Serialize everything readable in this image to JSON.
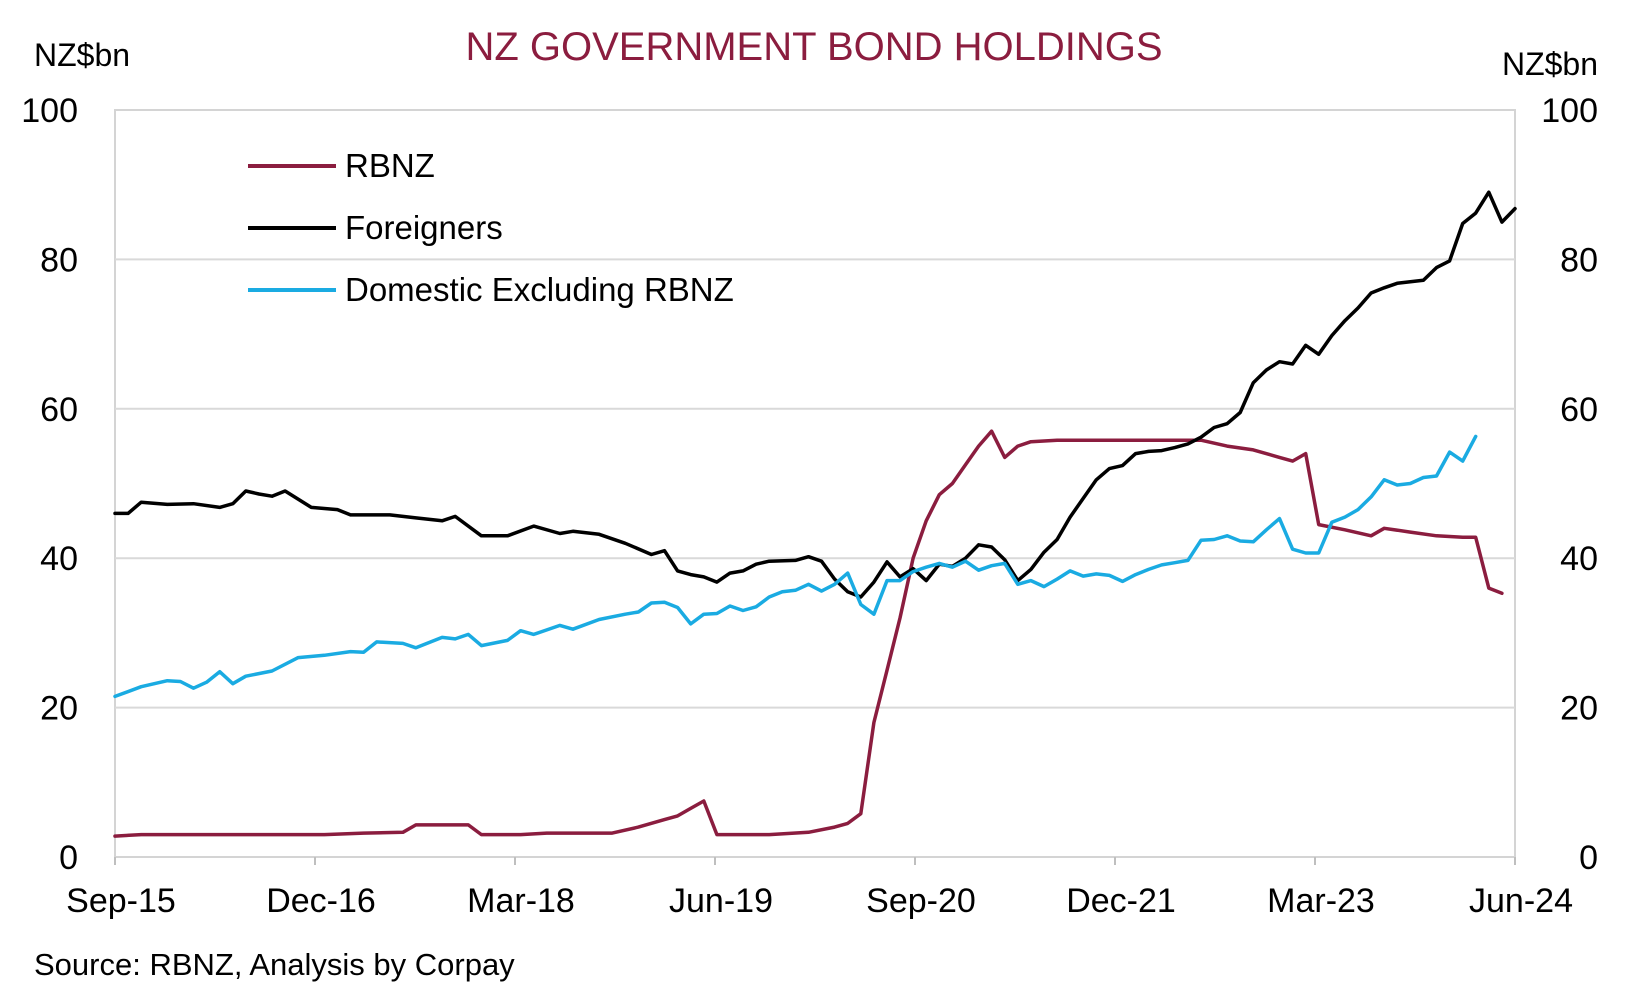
{
  "chart_data": {
    "type": "line",
    "title": "NZ GOVERNMENT BOND HOLDINGS",
    "title_color": "#8b1d3f",
    "ylabel_left": "NZ$bn",
    "ylabel_right": "NZ$bn",
    "ylim": [
      0,
      100
    ],
    "yticks": [
      0,
      20,
      40,
      60,
      80,
      100
    ],
    "x_tick_labels": [
      "Sep-15",
      "Dec-16",
      "Mar-18",
      "Jun-19",
      "Sep-20",
      "Dec-21",
      "Mar-23",
      "Jun-24"
    ],
    "x_start": "2015-09",
    "x_end": "2024-08",
    "grid": true,
    "legend_position": "top-left",
    "source": "Source: RBNZ, Analysis by Corpay",
    "series": [
      {
        "name": "RBNZ",
        "color": "#8b1d3f",
        "points": [
          [
            "2015-09",
            2.8
          ],
          [
            "2015-11",
            3.0
          ],
          [
            "2016-06",
            3.0
          ],
          [
            "2017-01",
            3.0
          ],
          [
            "2017-04",
            3.2
          ],
          [
            "2017-07",
            3.3
          ],
          [
            "2017-08",
            4.3
          ],
          [
            "2017-12",
            4.3
          ],
          [
            "2018-01",
            3.0
          ],
          [
            "2018-04",
            3.0
          ],
          [
            "2018-06",
            3.2
          ],
          [
            "2018-11",
            3.2
          ],
          [
            "2019-01",
            4.0
          ],
          [
            "2019-03",
            5.0
          ],
          [
            "2019-04",
            5.5
          ],
          [
            "2019-05",
            6.5
          ],
          [
            "2019-06",
            7.5
          ],
          [
            "2019-07",
            3.0
          ],
          [
            "2019-11",
            3.0
          ],
          [
            "2020-02",
            3.3
          ],
          [
            "2020-04",
            4.0
          ],
          [
            "2020-05",
            4.5
          ],
          [
            "2020-06",
            5.8
          ],
          [
            "2020-07",
            18.0
          ],
          [
            "2020-08",
            25.0
          ],
          [
            "2020-09",
            32.0
          ],
          [
            "2020-10",
            40.0
          ],
          [
            "2020-11",
            45.0
          ],
          [
            "2020-12",
            48.5
          ],
          [
            "2021-01",
            50.0
          ],
          [
            "2021-02",
            52.5
          ],
          [
            "2021-03",
            55.0
          ],
          [
            "2021-04",
            57.0
          ],
          [
            "2021-05",
            53.5
          ],
          [
            "2021-06",
            55.0
          ],
          [
            "2021-07",
            55.6
          ],
          [
            "2021-09",
            55.8
          ],
          [
            "2022-08",
            55.8
          ],
          [
            "2022-10",
            55.0
          ],
          [
            "2022-12",
            54.5
          ],
          [
            "2023-02",
            53.5
          ],
          [
            "2023-03",
            53.0
          ],
          [
            "2023-04",
            54.0
          ],
          [
            "2023-05",
            44.5
          ],
          [
            "2023-07",
            43.8
          ],
          [
            "2023-09",
            43.0
          ],
          [
            "2023-10",
            44.0
          ],
          [
            "2023-12",
            43.5
          ],
          [
            "2024-02",
            43.0
          ],
          [
            "2024-04",
            42.8
          ],
          [
            "2024-05",
            42.8
          ],
          [
            "2024-06",
            36.0
          ],
          [
            "2024-07",
            35.3
          ]
        ]
      },
      {
        "name": "Foreigners",
        "color": "#000000",
        "points": [
          [
            "2015-09",
            46.0
          ],
          [
            "2015-10",
            46.0
          ],
          [
            "2015-11",
            47.5
          ],
          [
            "2016-01",
            47.2
          ],
          [
            "2016-03",
            47.3
          ],
          [
            "2016-05",
            46.8
          ],
          [
            "2016-06",
            47.3
          ],
          [
            "2016-07",
            49.0
          ],
          [
            "2016-08",
            48.6
          ],
          [
            "2016-09",
            48.3
          ],
          [
            "2016-10",
            49.0
          ],
          [
            "2016-12",
            46.8
          ],
          [
            "2017-02",
            46.5
          ],
          [
            "2017-03",
            45.8
          ],
          [
            "2017-06",
            45.8
          ],
          [
            "2017-08",
            45.4
          ],
          [
            "2017-10",
            45.0
          ],
          [
            "2017-11",
            45.6
          ],
          [
            "2018-01",
            43.0
          ],
          [
            "2018-03",
            43.0
          ],
          [
            "2018-05",
            44.3
          ],
          [
            "2018-07",
            43.3
          ],
          [
            "2018-08",
            43.6
          ],
          [
            "2018-10",
            43.2
          ],
          [
            "2018-12",
            42.0
          ],
          [
            "2019-02",
            40.5
          ],
          [
            "2019-03",
            41.0
          ],
          [
            "2019-04",
            38.3
          ],
          [
            "2019-05",
            37.8
          ],
          [
            "2019-06",
            37.5
          ],
          [
            "2019-07",
            36.8
          ],
          [
            "2019-08",
            38.0
          ],
          [
            "2019-09",
            38.3
          ],
          [
            "2019-10",
            39.2
          ],
          [
            "2019-11",
            39.6
          ],
          [
            "2020-01",
            39.7
          ],
          [
            "2020-02",
            40.2
          ],
          [
            "2020-03",
            39.6
          ],
          [
            "2020-04",
            37.2
          ],
          [
            "2020-05",
            35.5
          ],
          [
            "2020-06",
            34.8
          ],
          [
            "2020-07",
            36.8
          ],
          [
            "2020-08",
            39.5
          ],
          [
            "2020-09",
            37.5
          ],
          [
            "2020-10",
            38.6
          ],
          [
            "2020-11",
            37.0
          ],
          [
            "2020-12",
            39.2
          ],
          [
            "2021-01",
            38.9
          ],
          [
            "2021-02",
            40.0
          ],
          [
            "2021-03",
            41.8
          ],
          [
            "2021-04",
            41.5
          ],
          [
            "2021-05",
            39.8
          ],
          [
            "2021-06",
            37.0
          ],
          [
            "2021-07",
            38.5
          ],
          [
            "2021-08",
            40.8
          ],
          [
            "2021-09",
            42.5
          ],
          [
            "2021-10",
            45.5
          ],
          [
            "2021-11",
            48.0
          ],
          [
            "2021-12",
            50.5
          ],
          [
            "2022-01",
            52.0
          ],
          [
            "2022-02",
            52.4
          ],
          [
            "2022-03",
            54.0
          ],
          [
            "2022-04",
            54.3
          ],
          [
            "2022-05",
            54.4
          ],
          [
            "2022-06",
            54.8
          ],
          [
            "2022-07",
            55.3
          ],
          [
            "2022-08",
            56.2
          ],
          [
            "2022-09",
            57.5
          ],
          [
            "2022-10",
            58.0
          ],
          [
            "2022-11",
            59.5
          ],
          [
            "2022-12",
            63.5
          ],
          [
            "2023-01",
            65.2
          ],
          [
            "2023-02",
            66.3
          ],
          [
            "2023-03",
            66.0
          ],
          [
            "2023-04",
            68.5
          ],
          [
            "2023-05",
            67.3
          ],
          [
            "2023-06",
            69.8
          ],
          [
            "2023-07",
            71.8
          ],
          [
            "2023-08",
            73.5
          ],
          [
            "2023-09",
            75.5
          ],
          [
            "2023-10",
            76.2
          ],
          [
            "2023-11",
            76.8
          ],
          [
            "2023-12",
            77.0
          ],
          [
            "2024-01",
            77.2
          ],
          [
            "2024-02",
            78.9
          ],
          [
            "2024-03",
            79.8
          ],
          [
            "2024-04",
            84.8
          ],
          [
            "2024-05",
            86.2
          ],
          [
            "2024-06",
            89.0
          ],
          [
            "2024-07",
            85.0
          ],
          [
            "2024-08",
            86.8
          ]
        ]
      },
      {
        "name": "Domestic Excluding RBNZ",
        "color": "#1aabe2",
        "points": [
          [
            "2015-09",
            21.5
          ],
          [
            "2015-11",
            22.8
          ],
          [
            "2016-01",
            23.6
          ],
          [
            "2016-02",
            23.5
          ],
          [
            "2016-03",
            22.6
          ],
          [
            "2016-04",
            23.4
          ],
          [
            "2016-05",
            24.8
          ],
          [
            "2016-06",
            23.2
          ],
          [
            "2016-07",
            24.2
          ],
          [
            "2016-09",
            24.9
          ],
          [
            "2016-11",
            26.7
          ],
          [
            "2017-01",
            27.0
          ],
          [
            "2017-03",
            27.5
          ],
          [
            "2017-04",
            27.4
          ],
          [
            "2017-05",
            28.8
          ],
          [
            "2017-07",
            28.6
          ],
          [
            "2017-08",
            28.0
          ],
          [
            "2017-10",
            29.4
          ],
          [
            "2017-11",
            29.2
          ],
          [
            "2017-12",
            29.8
          ],
          [
            "2018-01",
            28.3
          ],
          [
            "2018-03",
            29.0
          ],
          [
            "2018-04",
            30.3
          ],
          [
            "2018-05",
            29.8
          ],
          [
            "2018-07",
            31.0
          ],
          [
            "2018-08",
            30.5
          ],
          [
            "2018-10",
            31.8
          ],
          [
            "2018-12",
            32.5
          ],
          [
            "2019-01",
            32.8
          ],
          [
            "2019-02",
            34.0
          ],
          [
            "2019-03",
            34.1
          ],
          [
            "2019-04",
            33.4
          ],
          [
            "2019-05",
            31.2
          ],
          [
            "2019-06",
            32.5
          ],
          [
            "2019-07",
            32.6
          ],
          [
            "2019-08",
            33.6
          ],
          [
            "2019-09",
            33.0
          ],
          [
            "2019-10",
            33.5
          ],
          [
            "2019-11",
            34.8
          ],
          [
            "2019-12",
            35.5
          ],
          [
            "2020-01",
            35.7
          ],
          [
            "2020-02",
            36.5
          ],
          [
            "2020-03",
            35.6
          ],
          [
            "2020-04",
            36.5
          ],
          [
            "2020-05",
            38.0
          ],
          [
            "2020-06",
            33.8
          ],
          [
            "2020-07",
            32.5
          ],
          [
            "2020-08",
            37.0
          ],
          [
            "2020-09",
            37.0
          ],
          [
            "2020-10",
            38.2
          ],
          [
            "2020-11",
            38.8
          ],
          [
            "2020-12",
            39.3
          ],
          [
            "2021-01",
            38.8
          ],
          [
            "2021-02",
            39.6
          ],
          [
            "2021-03",
            38.4
          ],
          [
            "2021-04",
            39.0
          ],
          [
            "2021-05",
            39.3
          ],
          [
            "2021-06",
            36.5
          ],
          [
            "2021-07",
            37.0
          ],
          [
            "2021-08",
            36.2
          ],
          [
            "2021-09",
            37.2
          ],
          [
            "2021-10",
            38.3
          ],
          [
            "2021-11",
            37.6
          ],
          [
            "2021-12",
            37.9
          ],
          [
            "2022-01",
            37.7
          ],
          [
            "2022-02",
            36.9
          ],
          [
            "2022-03",
            37.8
          ],
          [
            "2022-04",
            38.5
          ],
          [
            "2022-05",
            39.1
          ],
          [
            "2022-06",
            39.4
          ],
          [
            "2022-07",
            39.7
          ],
          [
            "2022-08",
            42.4
          ],
          [
            "2022-09",
            42.5
          ],
          [
            "2022-10",
            43.0
          ],
          [
            "2022-11",
            42.3
          ],
          [
            "2022-12",
            42.2
          ],
          [
            "2023-01",
            43.8
          ],
          [
            "2023-02",
            45.3
          ],
          [
            "2023-03",
            41.2
          ],
          [
            "2023-04",
            40.7
          ],
          [
            "2023-05",
            40.7
          ],
          [
            "2023-06",
            44.8
          ],
          [
            "2023-07",
            45.5
          ],
          [
            "2023-08",
            46.5
          ],
          [
            "2023-09",
            48.2
          ],
          [
            "2023-10",
            50.5
          ],
          [
            "2023-11",
            49.8
          ],
          [
            "2023-12",
            50.0
          ],
          [
            "2024-01",
            50.8
          ],
          [
            "2024-02",
            51.0
          ],
          [
            "2024-03",
            54.2
          ],
          [
            "2024-04",
            53.0
          ],
          [
            "2024-05",
            56.3
          ]
        ]
      }
    ]
  }
}
